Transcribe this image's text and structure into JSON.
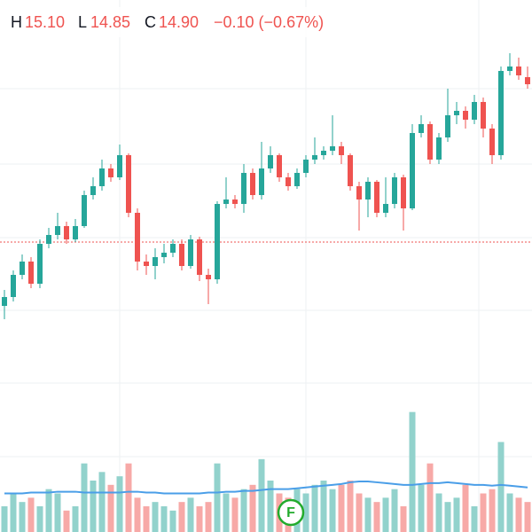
{
  "header": {
    "high_label": "H",
    "high": "15.10",
    "low_label": "L",
    "low": "14.85",
    "close_label": "C",
    "close": "14.90",
    "change": "−0.10 (−0.67%)"
  },
  "chart_data": {
    "type": "candlestick",
    "open": [
      12.4,
      12.5,
      12.75,
      12.9,
      12.65,
      13.1,
      13.2,
      13.3,
      13.15,
      13.3,
      13.65,
      13.75,
      13.95,
      13.85,
      14.1,
      13.45,
      12.9,
      12.85,
      12.95,
      13.0,
      13.1,
      12.85,
      13.15,
      12.75,
      12.7,
      13.55,
      13.6,
      13.55,
      13.9,
      13.65,
      13.95,
      14.1,
      13.85,
      13.75,
      13.9,
      14.05,
      14.1,
      14.15,
      14.2,
      14.1,
      13.75,
      13.6,
      13.8,
      13.45,
      13.55,
      13.85,
      13.5,
      14.35,
      14.45,
      14.05,
      14.3,
      14.55,
      14.6,
      14.5,
      14.7,
      14.4,
      14.1,
      15.05,
      15.1,
      14.98
    ],
    "high": [
      12.58,
      12.8,
      12.98,
      12.95,
      13.15,
      13.28,
      13.45,
      13.35,
      13.38,
      13.7,
      13.85,
      14.05,
      14.0,
      14.22,
      14.12,
      13.5,
      12.98,
      13.05,
      13.1,
      13.15,
      13.15,
      13.2,
      13.18,
      12.82,
      13.58,
      13.85,
      13.65,
      14.0,
      13.95,
      14.25,
      14.2,
      14.12,
      13.9,
      13.95,
      14.1,
      14.3,
      14.2,
      14.55,
      14.25,
      14.12,
      13.8,
      13.85,
      13.82,
      13.85,
      13.9,
      13.88,
      14.45,
      14.55,
      14.48,
      14.35,
      14.85,
      14.7,
      14.65,
      14.78,
      14.75,
      14.45,
      15.1,
      15.25,
      15.2,
      15.1
    ],
    "low": [
      12.25,
      12.45,
      12.7,
      12.6,
      12.6,
      13.05,
      13.15,
      13.1,
      13.12,
      13.28,
      13.6,
      13.7,
      13.8,
      13.82,
      13.4,
      12.8,
      12.75,
      12.7,
      12.88,
      12.95,
      12.8,
      12.82,
      12.68,
      12.42,
      12.65,
      13.5,
      13.5,
      13.45,
      13.6,
      13.6,
      13.9,
      13.8,
      13.7,
      13.72,
      13.85,
      14.0,
      14.05,
      14.1,
      14.0,
      13.7,
      13.25,
      13.4,
      13.4,
      13.4,
      13.5,
      13.25,
      13.48,
      14.3,
      14.0,
      14.0,
      14.25,
      14.45,
      14.4,
      14.45,
      14.3,
      14.0,
      14.05,
      15.0,
      14.95,
      14.85
    ],
    "close": [
      12.5,
      12.75,
      12.9,
      12.65,
      13.1,
      13.2,
      13.3,
      13.15,
      13.3,
      13.65,
      13.75,
      13.95,
      13.85,
      14.1,
      13.45,
      12.9,
      12.85,
      12.95,
      13.0,
      13.1,
      12.85,
      13.15,
      12.75,
      12.7,
      13.55,
      13.6,
      13.55,
      13.9,
      13.65,
      13.95,
      14.1,
      13.85,
      13.75,
      13.9,
      14.05,
      14.1,
      14.15,
      14.2,
      14.1,
      13.75,
      13.6,
      13.8,
      13.45,
      13.55,
      13.85,
      13.5,
      14.35,
      14.45,
      14.05,
      14.3,
      14.55,
      14.6,
      14.5,
      14.7,
      14.4,
      14.1,
      15.05,
      15.1,
      15.0,
      14.9
    ],
    "volume": [
      30,
      45,
      35,
      40,
      30,
      50,
      45,
      25,
      30,
      80,
      60,
      70,
      55,
      65,
      80,
      40,
      30,
      35,
      30,
      25,
      35,
      40,
      30,
      35,
      80,
      45,
      40,
      50,
      55,
      85,
      60,
      45,
      40,
      50,
      45,
      55,
      60,
      50,
      55,
      60,
      45,
      40,
      35,
      40,
      50,
      30,
      140,
      55,
      80,
      45,
      35,
      40,
      55,
      30,
      45,
      50,
      105,
      45,
      40,
      35
    ],
    "volume_ma": [
      45,
      45,
      45,
      46,
      46,
      46,
      47,
      47,
      47,
      46,
      46,
      46,
      46,
      46,
      47,
      47,
      46,
      46,
      45,
      45,
      45,
      45,
      45,
      46,
      46,
      47,
      47,
      48,
      48,
      49,
      50,
      50,
      50,
      51,
      52,
      53,
      54,
      55,
      56,
      58,
      59,
      59,
      58,
      57,
      56,
      55,
      55,
      56,
      57,
      57,
      58,
      57,
      56,
      55,
      55,
      54,
      55,
      54,
      53,
      52
    ],
    "ylim": [
      9.85,
      15.85
    ],
    "volume_lim": [
      0,
      150
    ],
    "price_line": 13.12,
    "up_color": "#26a69a",
    "down_color": "#ef5350",
    "up_volume_color": "#92d2cc",
    "down_volume_color": "#f7a9a7",
    "ma_color": "#4a9ee8",
    "event_marker": {
      "label": "F",
      "color": "#22ab2c"
    }
  }
}
